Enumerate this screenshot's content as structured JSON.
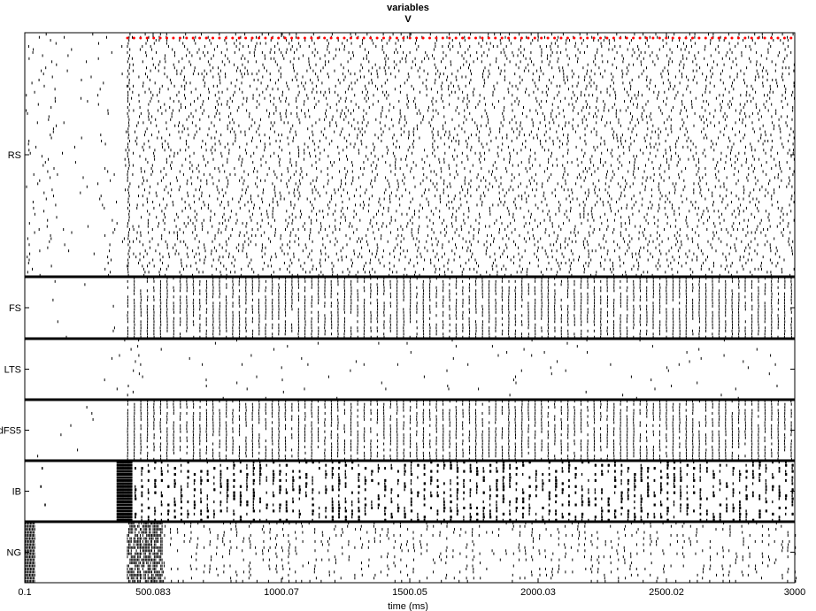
{
  "chart_data": {
    "type": "raster",
    "title": "variables",
    "subtitle": "V",
    "xlabel": "time (ms)",
    "xlim": [
      0.1,
      3000
    ],
    "xticks": [
      {
        "value": 0.1,
        "label": "0.1"
      },
      {
        "value": 500.083,
        "label": "500.083"
      },
      {
        "value": 1000.07,
        "label": "1000.07"
      },
      {
        "value": 1500.05,
        "label": "1500.05"
      },
      {
        "value": 2000.03,
        "label": "2000.03"
      },
      {
        "value": 2500.02,
        "label": "2500.02"
      },
      {
        "value": 3000,
        "label": "3000"
      }
    ],
    "populations": [
      {
        "name": "RS",
        "cells": 80,
        "onset_ms": 400,
        "pattern": "sparse"
      },
      {
        "name": "FS",
        "cells": 20,
        "onset_ms": 400,
        "pattern": "periodic"
      },
      {
        "name": "LTS",
        "cells": 20,
        "onset_ms": 400,
        "pattern": "rare"
      },
      {
        "name": "dFS5",
        "cells": 20,
        "onset_ms": 400,
        "pattern": "periodic"
      },
      {
        "name": "IB",
        "cells": 20,
        "onset_ms": 400,
        "pattern": "burst"
      },
      {
        "name": "NG",
        "cells": 20,
        "onset_ms": 400,
        "pattern": "clustered"
      }
    ],
    "event_marker": {
      "color": "#ff0000",
      "start_ms": 400,
      "end_ms": 3000,
      "population": "RS"
    },
    "grid": false,
    "colors": {
      "spike": "#000000",
      "separator": "#000000",
      "marker": "#ff0000"
    }
  }
}
